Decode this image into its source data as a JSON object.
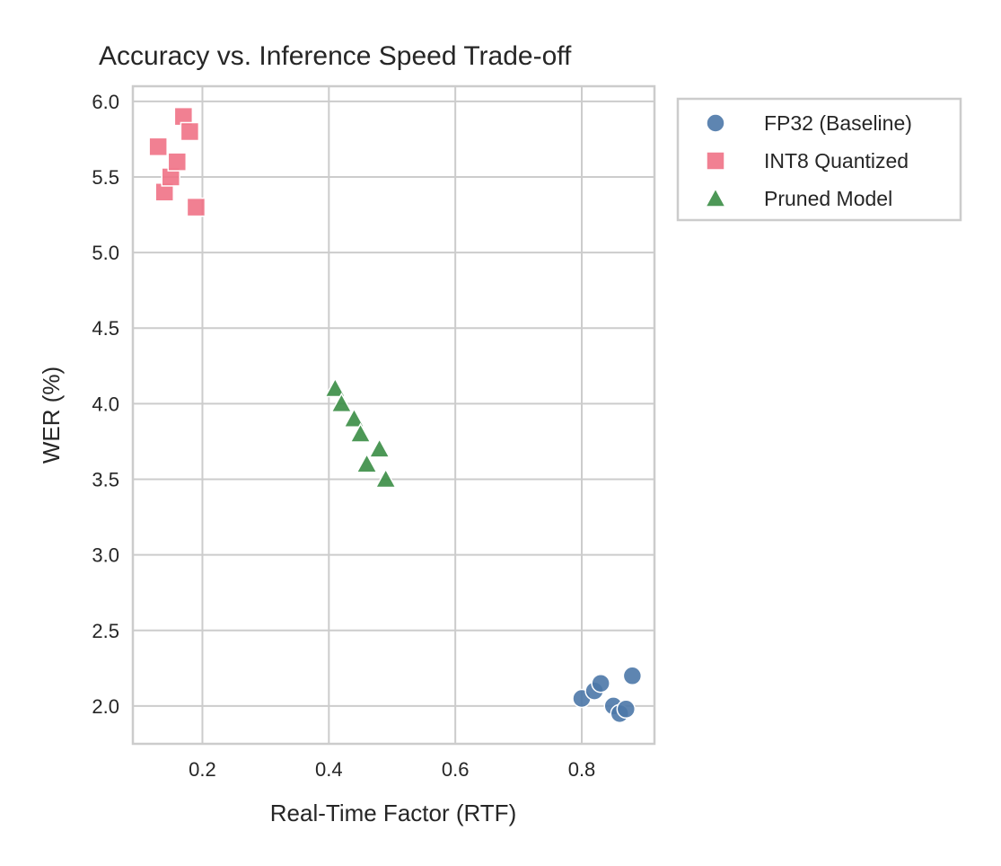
{
  "chart_data": {
    "type": "scatter",
    "title": "Accuracy vs. Inference Speed Trade-off",
    "xlabel": "Real-Time Factor (RTF)",
    "ylabel": "WER (%)",
    "xlim": [
      0.09,
      0.915
    ],
    "ylim": [
      1.75,
      6.1
    ],
    "xticks": [
      0.2,
      0.4,
      0.6,
      0.8
    ],
    "xtick_labels": [
      "0.2",
      "0.4",
      "0.6",
      "0.8"
    ],
    "yticks": [
      2.0,
      2.5,
      3.0,
      3.5,
      4.0,
      4.5,
      5.0,
      5.5,
      6.0
    ],
    "ytick_labels": [
      "2.0",
      "2.5",
      "3.0",
      "3.5",
      "4.0",
      "4.5",
      "5.0",
      "5.5",
      "6.0"
    ],
    "grid": true,
    "legend_position": "outside-top-right",
    "series": [
      {
        "name": "FP32 (Baseline)",
        "marker": "circle",
        "color": "#4c78a8",
        "points": [
          {
            "x": 0.8,
            "y": 2.05
          },
          {
            "x": 0.82,
            "y": 2.1
          },
          {
            "x": 0.83,
            "y": 2.15
          },
          {
            "x": 0.85,
            "y": 2.0
          },
          {
            "x": 0.86,
            "y": 1.95
          },
          {
            "x": 0.87,
            "y": 1.98
          },
          {
            "x": 0.88,
            "y": 2.2
          }
        ]
      },
      {
        "name": "INT8 Quantized",
        "marker": "square",
        "color": "#f07286",
        "points": [
          {
            "x": 0.13,
            "y": 5.7
          },
          {
            "x": 0.14,
            "y": 5.4
          },
          {
            "x": 0.15,
            "y": 5.5
          },
          {
            "x": 0.16,
            "y": 5.6
          },
          {
            "x": 0.17,
            "y": 5.9
          },
          {
            "x": 0.18,
            "y": 5.8
          },
          {
            "x": 0.19,
            "y": 5.3
          }
        ]
      },
      {
        "name": "Pruned Model",
        "marker": "triangle",
        "color": "#3a8d45",
        "points": [
          {
            "x": 0.41,
            "y": 4.1
          },
          {
            "x": 0.42,
            "y": 4.0
          },
          {
            "x": 0.44,
            "y": 3.9
          },
          {
            "x": 0.45,
            "y": 3.8
          },
          {
            "x": 0.46,
            "y": 3.6
          },
          {
            "x": 0.48,
            "y": 3.7
          },
          {
            "x": 0.49,
            "y": 3.5
          }
        ]
      }
    ]
  }
}
